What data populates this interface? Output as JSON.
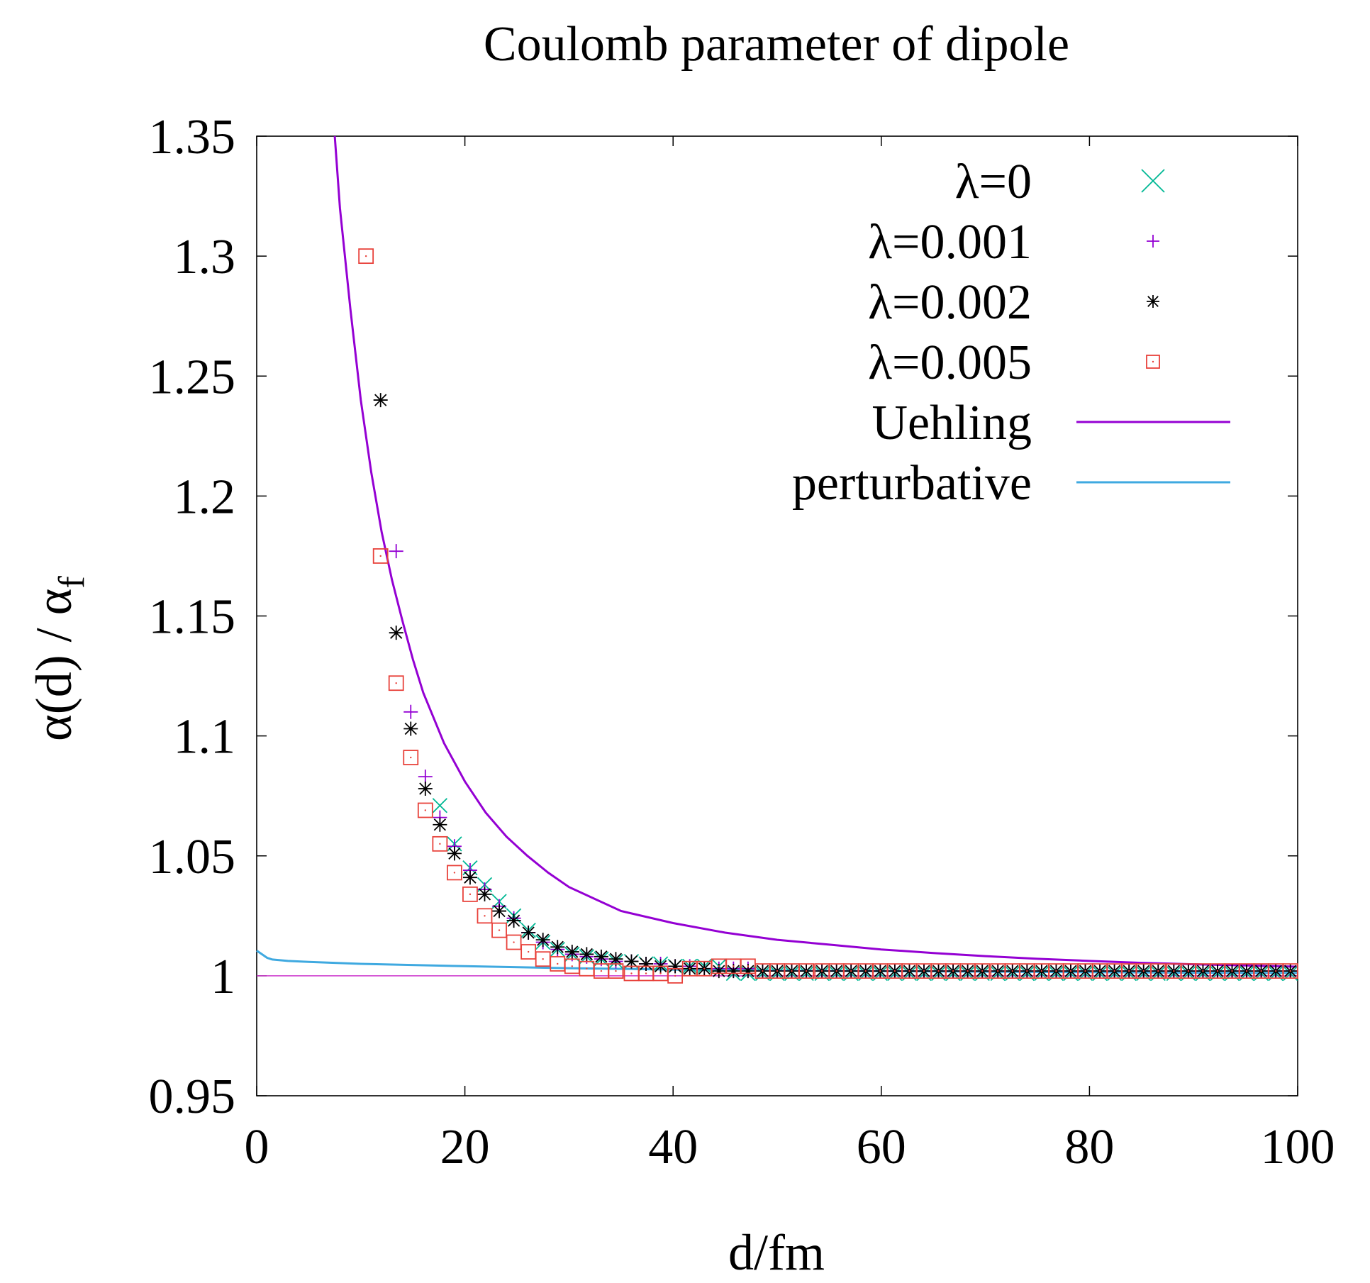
{
  "chart_data": {
    "type": "scatter",
    "title": "Coulomb parameter of dipole",
    "xlabel": "d/fm",
    "ylabel_main": "α(d) / α",
    "ylabel_sub": "f",
    "xlim": [
      0,
      100
    ],
    "ylim": [
      0.95,
      1.35
    ],
    "xticks": [
      0,
      20,
      40,
      60,
      80,
      100
    ],
    "xtick_labels": [
      "0",
      "20",
      "40",
      "60",
      "80",
      "100"
    ],
    "yticks": [
      0.95,
      1.0,
      1.05,
      1.1,
      1.15,
      1.2,
      1.25,
      1.3,
      1.35
    ],
    "ytick_labels": [
      "0.95",
      "1",
      "1.05",
      "1.1",
      "1.15",
      "1.2",
      "1.25",
      "1.3",
      "1.35"
    ],
    "legend_position": "top-right",
    "reference_line": {
      "y": 1.0,
      "color": "#cc33cc"
    },
    "series": [
      {
        "name": "λ=0",
        "marker": "x",
        "color": "#00b894",
        "points": [
          [
            17.6,
            1.071
          ],
          [
            19.0,
            1.055
          ],
          [
            20.5,
            1.045
          ],
          [
            21.9,
            1.038
          ],
          [
            23.3,
            1.031
          ],
          [
            24.7,
            1.025
          ],
          [
            26.1,
            1.019
          ],
          [
            27.5,
            1.014
          ],
          [
            28.9,
            1.011
          ],
          [
            30.3,
            1.009
          ],
          [
            31.7,
            1.008
          ],
          [
            33.1,
            1.007
          ],
          [
            34.5,
            1.006
          ],
          [
            36.0,
            1.006
          ],
          [
            37.4,
            1.005
          ],
          [
            38.8,
            1.005
          ],
          [
            40.2,
            1.004
          ],
          [
            41.6,
            1.004
          ],
          [
            43.0,
            1.004
          ],
          [
            44.4,
            1.004
          ],
          [
            45.8,
            1.001
          ],
          [
            47.2,
            1.001
          ],
          [
            48.6,
            1.001
          ],
          [
            50.0,
            1.001
          ],
          [
            51.4,
            1.001
          ],
          [
            52.8,
            1.001
          ],
          [
            54.3,
            1.001
          ],
          [
            55.7,
            1.001
          ],
          [
            57.1,
            1.001
          ],
          [
            58.5,
            1.001
          ],
          [
            59.9,
            1.001
          ],
          [
            61.3,
            1.001
          ],
          [
            62.7,
            1.001
          ],
          [
            64.1,
            1.001
          ],
          [
            65.5,
            1.001
          ],
          [
            66.9,
            1.001
          ],
          [
            68.3,
            1.001
          ],
          [
            69.7,
            1.001
          ],
          [
            71.2,
            1.001
          ],
          [
            72.6,
            1.001
          ],
          [
            74.0,
            1.001
          ],
          [
            75.4,
            1.001
          ],
          [
            76.8,
            1.001
          ],
          [
            78.2,
            1.001
          ],
          [
            79.6,
            1.001
          ],
          [
            81.0,
            1.001
          ],
          [
            82.4,
            1.001
          ],
          [
            83.8,
            1.001
          ],
          [
            85.2,
            1.001
          ],
          [
            86.6,
            1.001
          ],
          [
            88.1,
            1.001
          ],
          [
            89.5,
            1.001
          ],
          [
            90.9,
            1.001
          ],
          [
            92.3,
            1.001
          ],
          [
            93.7,
            1.001
          ],
          [
            95.1,
            1.001
          ],
          [
            96.5,
            1.001
          ],
          [
            97.9,
            1.001
          ],
          [
            99.3,
            1.001
          ]
        ]
      },
      {
        "name": "λ=0.001",
        "marker": "+",
        "color": "#9400d3",
        "points": [
          [
            13.4,
            1.177
          ],
          [
            14.8,
            1.11
          ],
          [
            16.2,
            1.083
          ],
          [
            17.6,
            1.066
          ],
          [
            19.0,
            1.054
          ],
          [
            20.5,
            1.044
          ],
          [
            21.9,
            1.036
          ],
          [
            23.3,
            1.029
          ],
          [
            24.7,
            1.024
          ],
          [
            26.1,
            1.018
          ],
          [
            27.5,
            1.014
          ],
          [
            28.9,
            1.011
          ],
          [
            30.3,
            1.009
          ],
          [
            31.7,
            1.008
          ],
          [
            33.1,
            1.007
          ],
          [
            34.5,
            1.006
          ],
          [
            36.0,
            1.006
          ],
          [
            37.4,
            1.005
          ],
          [
            38.8,
            1.005
          ],
          [
            40.2,
            1.004
          ],
          [
            41.6,
            1.004
          ],
          [
            43.0,
            1.003
          ],
          [
            44.4,
            1.003
          ],
          [
            45.8,
            1.003
          ],
          [
            47.2,
            1.003
          ],
          [
            48.6,
            1.002
          ],
          [
            50.0,
            1.002
          ],
          [
            51.4,
            1.002
          ],
          [
            52.8,
            1.002
          ],
          [
            54.3,
            1.002
          ],
          [
            55.7,
            1.002
          ],
          [
            57.1,
            1.002
          ],
          [
            58.5,
            1.002
          ],
          [
            59.9,
            1.002
          ],
          [
            61.3,
            1.002
          ],
          [
            62.7,
            1.002
          ],
          [
            64.1,
            1.002
          ],
          [
            65.5,
            1.002
          ],
          [
            66.9,
            1.002
          ],
          [
            68.3,
            1.002
          ],
          [
            69.7,
            1.002
          ],
          [
            71.2,
            1.002
          ],
          [
            72.6,
            1.002
          ],
          [
            74.0,
            1.002
          ],
          [
            75.4,
            1.002
          ],
          [
            76.8,
            1.002
          ],
          [
            78.2,
            1.002
          ],
          [
            79.6,
            1.002
          ],
          [
            81.0,
            1.002
          ],
          [
            82.4,
            1.002
          ],
          [
            83.8,
            1.002
          ],
          [
            85.2,
            1.002
          ],
          [
            86.6,
            1.002
          ],
          [
            88.1,
            1.002
          ],
          [
            89.5,
            1.002
          ],
          [
            90.9,
            1.002
          ],
          [
            92.3,
            1.002
          ],
          [
            93.7,
            1.002
          ],
          [
            95.1,
            1.002
          ],
          [
            96.5,
            1.002
          ],
          [
            97.9,
            1.002
          ],
          [
            99.3,
            1.002
          ]
        ]
      },
      {
        "name": "λ=0.002",
        "marker": "*",
        "color": "#000000",
        "points": [
          [
            11.9,
            1.24
          ],
          [
            13.4,
            1.143
          ],
          [
            14.8,
            1.103
          ],
          [
            16.2,
            1.078
          ],
          [
            17.6,
            1.063
          ],
          [
            19.0,
            1.051
          ],
          [
            20.5,
            1.041
          ],
          [
            21.9,
            1.034
          ],
          [
            23.3,
            1.027
          ],
          [
            24.7,
            1.023
          ],
          [
            26.1,
            1.018
          ],
          [
            27.5,
            1.015
          ],
          [
            28.9,
            1.012
          ],
          [
            30.3,
            1.01
          ],
          [
            31.7,
            1.009
          ],
          [
            33.1,
            1.008
          ],
          [
            34.5,
            1.007
          ],
          [
            36.0,
            1.006
          ],
          [
            37.4,
            1.005
          ],
          [
            38.8,
            1.004
          ],
          [
            40.2,
            1.004
          ],
          [
            41.6,
            1.003
          ],
          [
            43.0,
            1.003
          ],
          [
            44.4,
            1.002
          ],
          [
            45.8,
            1.002
          ],
          [
            47.2,
            1.002
          ],
          [
            48.6,
            1.002
          ],
          [
            50.0,
            1.002
          ],
          [
            51.4,
            1.002
          ],
          [
            52.8,
            1.002
          ],
          [
            54.3,
            1.002
          ],
          [
            55.7,
            1.002
          ],
          [
            57.1,
            1.002
          ],
          [
            58.5,
            1.002
          ],
          [
            59.9,
            1.002
          ],
          [
            61.3,
            1.002
          ],
          [
            62.7,
            1.002
          ],
          [
            64.1,
            1.002
          ],
          [
            65.5,
            1.002
          ],
          [
            66.9,
            1.002
          ],
          [
            68.3,
            1.002
          ],
          [
            69.7,
            1.002
          ],
          [
            71.2,
            1.002
          ],
          [
            72.6,
            1.002
          ],
          [
            74.0,
            1.002
          ],
          [
            75.4,
            1.002
          ],
          [
            76.8,
            1.002
          ],
          [
            78.2,
            1.002
          ],
          [
            79.6,
            1.002
          ],
          [
            81.0,
            1.002
          ],
          [
            82.4,
            1.002
          ],
          [
            83.8,
            1.002
          ],
          [
            85.2,
            1.002
          ],
          [
            86.6,
            1.002
          ],
          [
            88.1,
            1.002
          ],
          [
            89.5,
            1.002
          ],
          [
            90.9,
            1.002
          ],
          [
            92.3,
            1.002
          ],
          [
            93.7,
            1.002
          ],
          [
            95.1,
            1.002
          ],
          [
            96.5,
            1.002
          ],
          [
            97.9,
            1.002
          ],
          [
            99.3,
            1.002
          ]
        ]
      },
      {
        "name": "λ=0.005",
        "marker": "square",
        "color": "#e8423b",
        "points": [
          [
            10.5,
            1.3
          ],
          [
            11.9,
            1.175
          ],
          [
            13.4,
            1.122
          ],
          [
            14.8,
            1.091
          ],
          [
            16.2,
            1.069
          ],
          [
            17.6,
            1.055
          ],
          [
            19.0,
            1.043
          ],
          [
            20.5,
            1.034
          ],
          [
            21.9,
            1.025
          ],
          [
            23.3,
            1.019
          ],
          [
            24.7,
            1.014
          ],
          [
            26.1,
            1.01
          ],
          [
            27.5,
            1.007
          ],
          [
            28.9,
            1.005
          ],
          [
            30.3,
            1.004
          ],
          [
            31.7,
            1.003
          ],
          [
            33.1,
            1.002
          ],
          [
            34.5,
            1.002
          ],
          [
            36.0,
            1.001
          ],
          [
            37.4,
            1.001
          ],
          [
            38.8,
            1.001
          ],
          [
            40.2,
            1.0
          ],
          [
            41.6,
            1.003
          ],
          [
            43.0,
            1.003
          ],
          [
            44.4,
            1.004
          ],
          [
            45.8,
            1.004
          ],
          [
            47.2,
            1.004
          ],
          [
            48.6,
            1.002
          ],
          [
            50.0,
            1.002
          ],
          [
            51.4,
            1.002
          ],
          [
            52.8,
            1.002
          ],
          [
            54.3,
            1.002
          ],
          [
            55.7,
            1.002
          ],
          [
            57.1,
            1.002
          ],
          [
            58.5,
            1.002
          ],
          [
            59.9,
            1.002
          ],
          [
            61.3,
            1.002
          ],
          [
            62.7,
            1.002
          ],
          [
            64.1,
            1.002
          ],
          [
            65.5,
            1.002
          ],
          [
            66.9,
            1.002
          ],
          [
            68.3,
            1.002
          ],
          [
            69.7,
            1.002
          ],
          [
            71.2,
            1.002
          ],
          [
            72.6,
            1.002
          ],
          [
            74.0,
            1.002
          ],
          [
            75.4,
            1.002
          ],
          [
            76.8,
            1.002
          ],
          [
            78.2,
            1.002
          ],
          [
            79.6,
            1.002
          ],
          [
            81.0,
            1.002
          ],
          [
            82.4,
            1.002
          ],
          [
            83.8,
            1.002
          ],
          [
            85.2,
            1.002
          ],
          [
            86.6,
            1.002
          ],
          [
            88.1,
            1.002
          ],
          [
            89.5,
            1.002
          ],
          [
            90.9,
            1.002
          ],
          [
            92.3,
            1.002
          ],
          [
            93.7,
            1.002
          ],
          [
            95.1,
            1.002
          ],
          [
            96.5,
            1.002
          ],
          [
            97.9,
            1.002
          ],
          [
            99.3,
            1.002
          ]
        ]
      },
      {
        "name": "Uehling",
        "marker": "line",
        "color": "#9400d3",
        "points": [
          [
            7.5,
            1.35
          ],
          [
            8,
            1.32
          ],
          [
            9,
            1.278
          ],
          [
            10,
            1.24
          ],
          [
            11,
            1.21
          ],
          [
            12,
            1.185
          ],
          [
            13,
            1.165
          ],
          [
            14,
            1.148
          ],
          [
            15,
            1.132
          ],
          [
            16,
            1.118
          ],
          [
            18,
            1.097
          ],
          [
            20,
            1.081
          ],
          [
            22,
            1.068
          ],
          [
            24,
            1.058
          ],
          [
            26,
            1.05
          ],
          [
            28,
            1.043
          ],
          [
            30,
            1.037
          ],
          [
            35,
            1.027
          ],
          [
            40,
            1.022
          ],
          [
            45,
            1.018
          ],
          [
            50,
            1.015
          ],
          [
            55,
            1.013
          ],
          [
            60,
            1.011
          ],
          [
            65,
            1.0095
          ],
          [
            70,
            1.0082
          ],
          [
            75,
            1.0071
          ],
          [
            80,
            1.0062
          ],
          [
            85,
            1.0054
          ],
          [
            90,
            1.0048
          ],
          [
            95,
            1.0043
          ],
          [
            100,
            1.0038
          ]
        ]
      },
      {
        "name": "perturbative",
        "marker": "line",
        "color": "#3fa9e0",
        "points": [
          [
            0,
            1.0105
          ],
          [
            0.5,
            1.009
          ],
          [
            1,
            1.0075
          ],
          [
            1.5,
            1.0068
          ],
          [
            3,
            1.0062
          ],
          [
            5,
            1.0058
          ],
          [
            10,
            1.005
          ],
          [
            20,
            1.004
          ],
          [
            30,
            1.0032
          ],
          [
            40,
            1.0026
          ],
          [
            50,
            1.0022
          ],
          [
            60,
            1.0019
          ],
          [
            70,
            1.0017
          ],
          [
            80,
            1.0015
          ],
          [
            90,
            1.0013
          ],
          [
            100,
            1.0012
          ]
        ]
      }
    ]
  }
}
